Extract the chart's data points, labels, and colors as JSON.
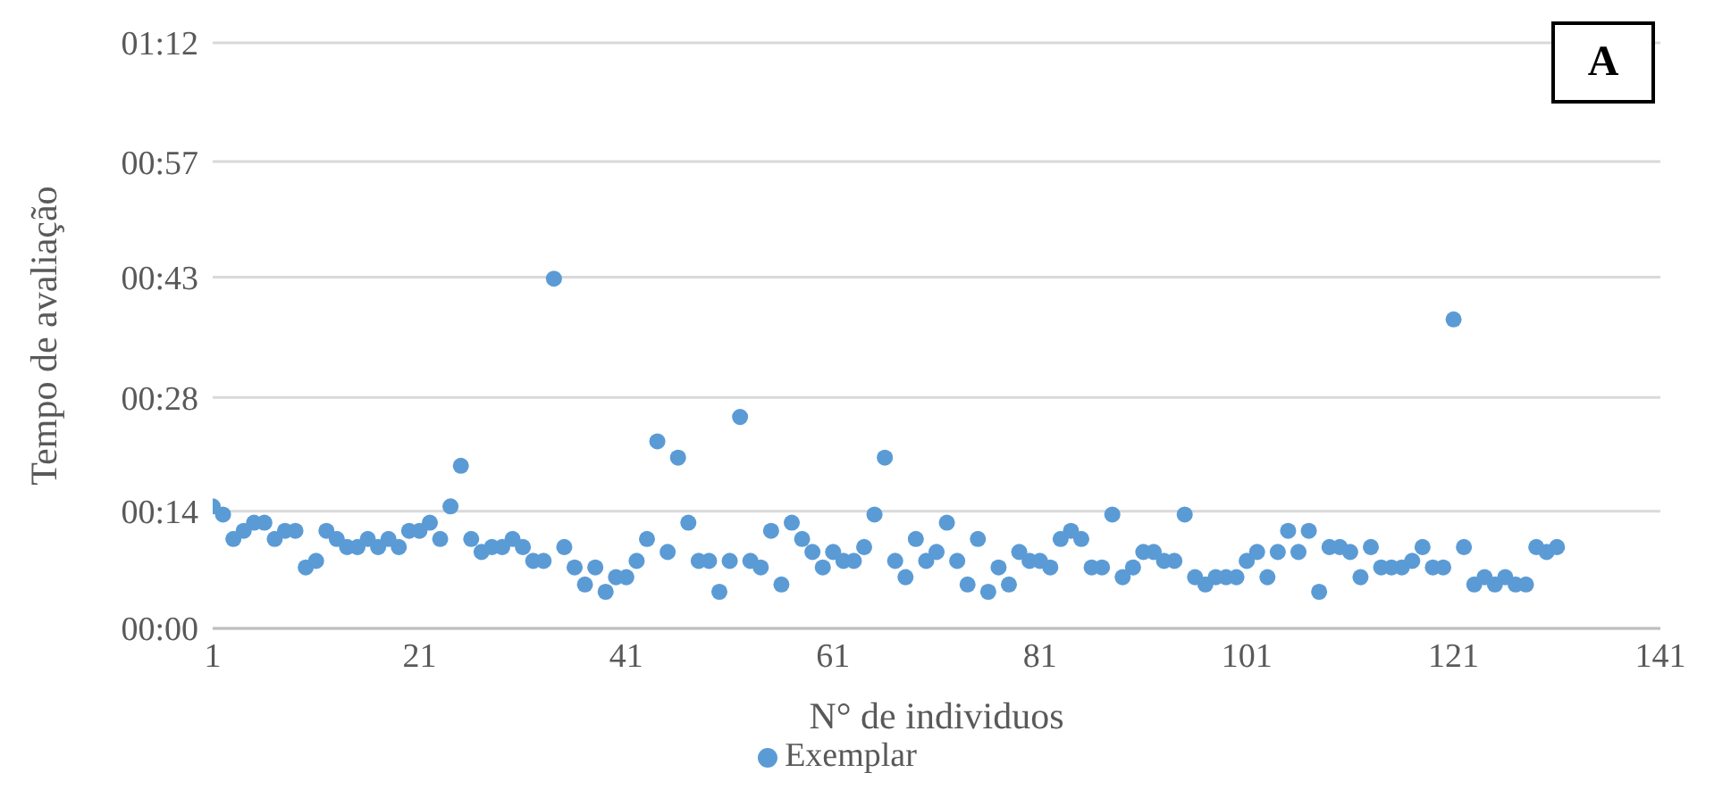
{
  "chart_data": {
    "type": "scatter",
    "xlabel": "N° de individuos",
    "ylabel": "Tempo de avaliação",
    "x": [
      1,
      2,
      3,
      4,
      5,
      6,
      7,
      8,
      9,
      10,
      11,
      12,
      13,
      14,
      15,
      16,
      17,
      18,
      19,
      20,
      21,
      22,
      23,
      24,
      25,
      26,
      27,
      28,
      29,
      30,
      31,
      32,
      33,
      34,
      35,
      36,
      37,
      38,
      39,
      40,
      41,
      42,
      43,
      44,
      45,
      46,
      47,
      48,
      49,
      50,
      51,
      52,
      53,
      54,
      55,
      56,
      57,
      58,
      59,
      60,
      61,
      62,
      63,
      64,
      65,
      66,
      67,
      68,
      69,
      70,
      71,
      72,
      73,
      74,
      75,
      76,
      77,
      78,
      79,
      80,
      81,
      82,
      83,
      84,
      85,
      86,
      87,
      88,
      89,
      90,
      91,
      92,
      93,
      94,
      95,
      96,
      97,
      98,
      99,
      100,
      101,
      102,
      103,
      104,
      105,
      106,
      107,
      108,
      109,
      110,
      111,
      112,
      113,
      114,
      115,
      116,
      117,
      118,
      119,
      120,
      121,
      122,
      123,
      124,
      125,
      126,
      127,
      128,
      129,
      130,
      131
    ],
    "series": [
      {
        "name": "Exemplar",
        "color": "#5b9bd5",
        "values": [
          15,
          14,
          11,
          12,
          13,
          13,
          11,
          12,
          12,
          7.5,
          8.3,
          12,
          11,
          10,
          10,
          11,
          10,
          11,
          10,
          12,
          12,
          13,
          11,
          15,
          20,
          11,
          9.4,
          10,
          10,
          11,
          10,
          8.3,
          8.3,
          43,
          10,
          7.5,
          5.4,
          7.5,
          4.5,
          6.3,
          6.3,
          8.3,
          11,
          23,
          9.4,
          21,
          13,
          8.3,
          8.3,
          4.5,
          8.3,
          26,
          8.3,
          7.5,
          12,
          5.4,
          13,
          11,
          9.4,
          7.5,
          9.4,
          8.3,
          8.3,
          10,
          14,
          21,
          8.3,
          6.3,
          11,
          8.3,
          9.4,
          13,
          8.3,
          5.4,
          11,
          4.5,
          7.5,
          5.4,
          9.4,
          8.3,
          8.3,
          7.5,
          11,
          12,
          11,
          7.5,
          7.5,
          14,
          6.3,
          7.5,
          9.4,
          9.4,
          8.3,
          8.3,
          14,
          6.3,
          5.4,
          6.3,
          6.3,
          6.3,
          8.3,
          9.4,
          6.3,
          9.4,
          12,
          9.4,
          12,
          4.5,
          10,
          10,
          9.4,
          6.3,
          10,
          7.5,
          7.5,
          7.5,
          8.3,
          10,
          7.5,
          7.5,
          38,
          10,
          5.4,
          6.3,
          5.4,
          6.3,
          5.4,
          5.4,
          10,
          9.4,
          10
        ]
      }
    ],
    "xlim": [
      1,
      141
    ],
    "xticks": [
      1,
      21,
      41,
      61,
      81,
      101,
      121,
      141
    ],
    "ylim": [
      0,
      72
    ],
    "yticks": [
      {
        "value": 0,
        "label": "00:00"
      },
      {
        "value": 14.4,
        "label": "00:14"
      },
      {
        "value": 28.4,
        "label": "00:28"
      },
      {
        "value": 43.2,
        "label": "00:43"
      },
      {
        "value": 57.4,
        "label": "00:57"
      },
      {
        "value": 72,
        "label": "01:12"
      }
    ],
    "grid": "y",
    "legend": "bottom",
    "marker": "circle",
    "annotations": [
      "A"
    ]
  }
}
